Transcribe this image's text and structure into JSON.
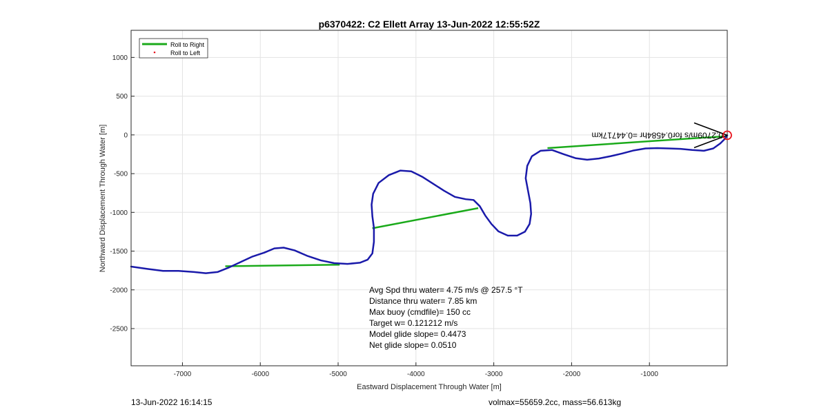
{
  "chart_data": {
    "type": "line",
    "title": "p6370422: C2 Ellett Array 13-Jun-2022 12:55:52Z",
    "xlabel": "Eastward Displacement Through Water [m]",
    "ylabel": "Northward Displacement Through Water [m]",
    "xlim": [
      -7660,
      0
    ],
    "ylim": [
      -2980,
      1350
    ],
    "xticks": [
      -7000,
      -6000,
      -5000,
      -4000,
      -3000,
      -2000,
      -1000
    ],
    "yticks": [
      -2500,
      -2000,
      -1500,
      -1000,
      -500,
      0,
      500,
      1000
    ],
    "grid": true,
    "legend_position": "top-left",
    "legend": [
      {
        "label": "Roll to Right",
        "color": "#1aaa1a",
        "style": "line"
      },
      {
        "label": "Roll to Left",
        "color": "#e8141e",
        "style": "point"
      }
    ],
    "series": [
      {
        "name": "Roll to Right",
        "color": "#1aaa1a",
        "segments": [
          [
            [
              -6450,
              -1695
            ],
            [
              -4980,
              -1675
            ]
          ],
          [
            [
              -4560,
              -1205
            ],
            [
              -3200,
              -945
            ]
          ],
          [
            [
              -2310,
              -170
            ],
            [
              -380,
              -40
            ],
            [
              -40,
              -20
            ]
          ]
        ]
      },
      {
        "color": "#1a1aaa",
        "points": [
          [
            -7660,
            -1700
          ],
          [
            -7450,
            -1730
          ],
          [
            -7250,
            -1755
          ],
          [
            -7050,
            -1755
          ],
          [
            -6850,
            -1770
          ],
          [
            -6700,
            -1785
          ],
          [
            -6550,
            -1770
          ],
          [
            -6400,
            -1710
          ],
          [
            -6250,
            -1640
          ],
          [
            -6100,
            -1570
          ],
          [
            -5950,
            -1520
          ],
          [
            -5820,
            -1465
          ],
          [
            -5700,
            -1455
          ],
          [
            -5560,
            -1490
          ],
          [
            -5400,
            -1560
          ],
          [
            -5220,
            -1620
          ],
          [
            -5050,
            -1655
          ],
          [
            -4880,
            -1665
          ],
          [
            -4720,
            -1650
          ],
          [
            -4620,
            -1610
          ],
          [
            -4560,
            -1530
          ],
          [
            -4540,
            -1380
          ],
          [
            -4540,
            -1200
          ],
          [
            -4560,
            -1050
          ],
          [
            -4570,
            -900
          ],
          [
            -4550,
            -760
          ],
          [
            -4480,
            -620
          ],
          [
            -4350,
            -520
          ],
          [
            -4200,
            -460
          ],
          [
            -4060,
            -470
          ],
          [
            -3920,
            -540
          ],
          [
            -3780,
            -630
          ],
          [
            -3640,
            -720
          ],
          [
            -3500,
            -800
          ],
          [
            -3360,
            -830
          ],
          [
            -3260,
            -840
          ],
          [
            -3180,
            -920
          ],
          [
            -3110,
            -1040
          ],
          [
            -3030,
            -1150
          ],
          [
            -2940,
            -1245
          ],
          [
            -2820,
            -1300
          ],
          [
            -2700,
            -1300
          ],
          [
            -2600,
            -1250
          ],
          [
            -2540,
            -1150
          ],
          [
            -2520,
            -1020
          ],
          [
            -2530,
            -880
          ],
          [
            -2560,
            -720
          ],
          [
            -2590,
            -560
          ],
          [
            -2570,
            -400
          ],
          [
            -2510,
            -275
          ],
          [
            -2400,
            -205
          ],
          [
            -2250,
            -195
          ],
          [
            -2100,
            -250
          ],
          [
            -1950,
            -300
          ],
          [
            -1800,
            -320
          ],
          [
            -1650,
            -305
          ],
          [
            -1500,
            -275
          ],
          [
            -1350,
            -240
          ],
          [
            -1200,
            -200
          ],
          [
            -1050,
            -175
          ],
          [
            -900,
            -170
          ],
          [
            -750,
            -175
          ],
          [
            -600,
            -180
          ],
          [
            -450,
            -195
          ],
          [
            -300,
            -205
          ],
          [
            -180,
            -175
          ],
          [
            -90,
            -110
          ],
          [
            -30,
            -50
          ],
          [
            0,
            -5
          ]
        ]
      }
    ],
    "annotations": [
      "Avg Spd thru water=  4.75 m/s @ 257.5 °T",
      "Distance thru water=  7.85 km",
      "Max buoy (cmdfile)= 150 cc",
      "Target w= 0.121212 m/s",
      "Model glide slope= 0.4473",
      "Net glide slope= 0.0510"
    ],
    "current_label": "0.2709m/s for0.4584hr =0.44717km",
    "end_marker": [
      0,
      -5
    ]
  },
  "footer": {
    "timestamp": "13-Jun-2022 16:14:15",
    "vol_mass": "volmax=55659.2cc, mass=56.613kg"
  }
}
